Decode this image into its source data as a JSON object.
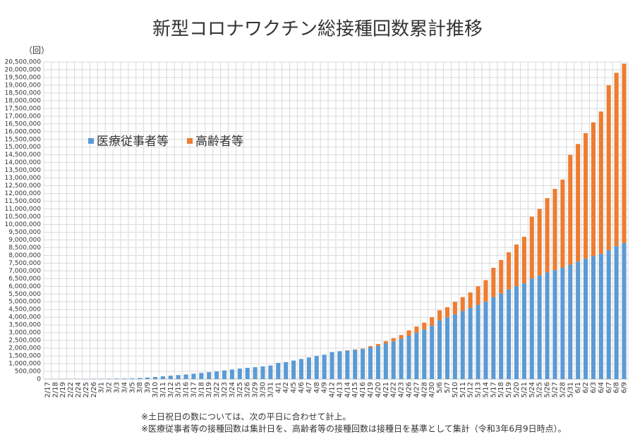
{
  "chart_data": {
    "type": "stacked_bar",
    "title": "新型コロナワクチン総接種回数累計推移",
    "y_unit": "（回）",
    "notes": [
      "※土日祝日の数については、次の平日に合わせて計上。",
      "※医療従事者等の接種回数は集計日を、高齢者等の接種回数は接種日を基準として集計（令和3年6月9日時点）。"
    ],
    "categories": [
      "2/17",
      "2/18",
      "2/19",
      "2/22",
      "2/24",
      "2/25",
      "2/26",
      "3/1",
      "3/2",
      "3/3",
      "3/4",
      "3/5",
      "3/8",
      "3/9",
      "3/10",
      "3/11",
      "3/12",
      "3/15",
      "3/16",
      "3/17",
      "3/18",
      "3/19",
      "3/22",
      "3/23",
      "3/24",
      "3/25",
      "3/26",
      "3/29",
      "3/30",
      "3/31",
      "4/1",
      "4/2",
      "4/5",
      "4/6",
      "4/7",
      "4/8",
      "4/9",
      "4/12",
      "4/13",
      "4/14",
      "4/15",
      "4/16",
      "4/19",
      "4/20",
      "4/21",
      "4/22",
      "4/23",
      "4/26",
      "4/27",
      "4/28",
      "4/30",
      "5/6",
      "5/7",
      "5/10",
      "5/11",
      "5/12",
      "5/13",
      "5/14",
      "5/17",
      "5/18",
      "5/19",
      "5/20",
      "5/21",
      "5/24",
      "5/25",
      "5/26",
      "5/27",
      "5/28",
      "5/31",
      "6/1",
      "6/2",
      "6/3",
      "6/4",
      "6/7",
      "6/8",
      "6/9"
    ],
    "series": [
      {
        "name": "医療従事者等",
        "color": "#5b9bd5",
        "values": [
          125,
          1500,
          3500,
          6000,
          10000,
          14000,
          18000,
          22000,
          27000,
          32000,
          37000,
          46000,
          70000,
          100000,
          140000,
          180000,
          220000,
          260000,
          300000,
          350000,
          400000,
          450000,
          500000,
          560000,
          620000,
          680000,
          730000,
          770000,
          820000,
          880000,
          1050000,
          1100000,
          1200000,
          1300000,
          1400000,
          1500000,
          1580000,
          1750000,
          1800000,
          1850000,
          1900000,
          1950000,
          2050000,
          2150000,
          2300000,
          2450000,
          2600000,
          2800000,
          3000000,
          3200000,
          3450000,
          3800000,
          4000000,
          4200000,
          4400000,
          4600000,
          4800000,
          5000000,
          5300000,
          5550000,
          5800000,
          6000000,
          6200000,
          6500000,
          6700000,
          6900000,
          7050000,
          7200000,
          7400000,
          7600000,
          7800000,
          7950000,
          8100000,
          8350000,
          8600000,
          8800000
        ]
      },
      {
        "name": "高齢者等",
        "color": "#ed7d31",
        "values": [
          0,
          0,
          0,
          0,
          0,
          0,
          0,
          0,
          0,
          0,
          0,
          0,
          0,
          0,
          0,
          0,
          0,
          0,
          0,
          0,
          0,
          0,
          0,
          0,
          0,
          0,
          0,
          0,
          0,
          0,
          0,
          0,
          0,
          0,
          0,
          0,
          0,
          2000,
          5000,
          10000,
          20000,
          30000,
          80000,
          120000,
          150000,
          200000,
          250000,
          350000,
          400000,
          450000,
          550000,
          650000,
          650000,
          800000,
          900000,
          1000000,
          1200000,
          1400000,
          1900000,
          2150000,
          2400000,
          2700000,
          3000000,
          4000000,
          4300000,
          4800000,
          5250000,
          5700000,
          7100000,
          7600000,
          8100000,
          8650000,
          9200000,
          10650000,
          11200000,
          11600000
        ]
      }
    ],
    "ylim": [
      0,
      20500000
    ],
    "yticks": [
      0,
      {
        "value": 500000,
        "label": "500,000"
      },
      {
        "value": 1000000,
        "label": "1,000,000"
      },
      {
        "value": 1500000,
        "label": "1,500,000"
      },
      {
        "value": 2000000,
        "label": "2,000,000"
      },
      {
        "value": 2500000,
        "label": "2,500,000"
      },
      {
        "value": 3000000,
        "label": "3,000,000"
      },
      {
        "value": 3500000,
        "label": "3,500,000"
      },
      {
        "value": 4000000,
        "label": "4,000,000"
      },
      {
        "value": 4500000,
        "label": "4,500,000"
      },
      {
        "value": 5000000,
        "label": "5,000,000"
      },
      {
        "value": 5500000,
        "label": "5,500,000"
      },
      {
        "value": 6000000,
        "label": "6,000,000"
      },
      {
        "value": 6500000,
        "label": "6,500,000"
      },
      {
        "value": 7000000,
        "label": "7,000,000"
      },
      {
        "value": 7500000,
        "label": "7,500,000"
      },
      {
        "value": 8000000,
        "label": "8,000,000"
      },
      {
        "value": 8500000,
        "label": "8,500,000"
      },
      {
        "value": 9000000,
        "label": "9,000,000"
      },
      {
        "value": 9500000,
        "label": "9,500,000"
      },
      {
        "value": 10000000,
        "label": "10,000,000"
      },
      {
        "value": 10500000,
        "label": "10,500,000"
      },
      {
        "value": 11000000,
        "label": "11,000,000"
      },
      {
        "value": 11500000,
        "label": "11,500,000"
      },
      {
        "value": 12000000,
        "label": "12,000,000"
      },
      {
        "value": 12500000,
        "label": "12,500,000"
      },
      {
        "value": 13000000,
        "label": "13,000,000"
      },
      {
        "value": 13500000,
        "label": "13,500,000"
      },
      {
        "value": 14000000,
        "label": "14,000,000"
      },
      {
        "value": 14500000,
        "label": "14,500,000"
      },
      {
        "value": 15000000,
        "label": "15,000,000"
      },
      {
        "value": 15500000,
        "label": "15,500,000"
      },
      {
        "value": 16000000,
        "label": "16,000,000"
      },
      {
        "value": 16500000,
        "label": "16,500,000"
      },
      {
        "value": 17000000,
        "label": "17,000,000"
      },
      {
        "value": 17500000,
        "label": "17,500,000"
      },
      {
        "value": 18000000,
        "label": "18,000,000"
      },
      {
        "value": 18500000,
        "label": "18,500,000"
      },
      {
        "value": 19000000,
        "label": "19,000,000"
      },
      {
        "value": 19500000,
        "label": "19,500,000"
      },
      {
        "value": 20000000,
        "label": "20,000,000"
      },
      {
        "value": 20500000,
        "label": "20,500,000"
      }
    ],
    "grid": true,
    "legend": "upper left"
  }
}
